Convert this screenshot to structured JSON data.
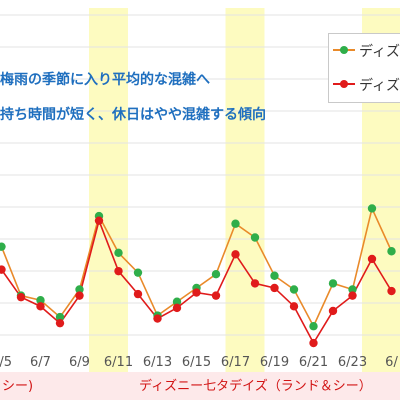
{
  "chart_data": {
    "type": "line",
    "x": [
      "6/4",
      "6/5",
      "6/6",
      "6/7",
      "6/8",
      "6/9",
      "6/10",
      "6/11",
      "6/12",
      "6/13",
      "6/14",
      "6/15",
      "6/16",
      "6/17",
      "6/18",
      "6/19",
      "6/20",
      "6/21",
      "6/22",
      "6/23",
      "6/24",
      "6/25"
    ],
    "x_tick_labels": [
      "6/5",
      "6/7",
      "6/9",
      "6/11",
      "6/13",
      "6/15",
      "6/17",
      "6/19",
      "6/21",
      "6/23",
      "6/"
    ],
    "series": [
      {
        "name": "ディズ",
        "color": "#e98a2a",
        "marker_color": "#2fae4a",
        "values": [
          54,
          61,
          29,
          26,
          15,
          33,
          81,
          57,
          44,
          16,
          25,
          34,
          43,
          76,
          67,
          42,
          33,
          9,
          37,
          33,
          86,
          58
        ]
      },
      {
        "name": "ディズ",
        "color": "#e01b1b",
        "marker_color": "#e01b1b",
        "values": [
          42,
          46,
          28,
          22,
          11,
          29,
          78,
          45,
          30,
          14,
          21,
          31,
          29,
          56,
          37,
          34,
          22,
          -2,
          19,
          29,
          53,
          32
        ]
      }
    ],
    "highlight_days": [
      "6/10",
      "6/17",
      "6/24"
    ],
    "highlight_color": "#fdfbc0",
    "annotations": [
      "梅雨の季節に入り平均的な混雑へ",
      "持ち時間が短く、休日はやや混雑する傾向"
    ],
    "bottom_labels": [
      "シー)",
      "ディズニー七タデイズ（ランド＆シー）"
    ],
    "grid": true,
    "legend_position": "top-right"
  }
}
